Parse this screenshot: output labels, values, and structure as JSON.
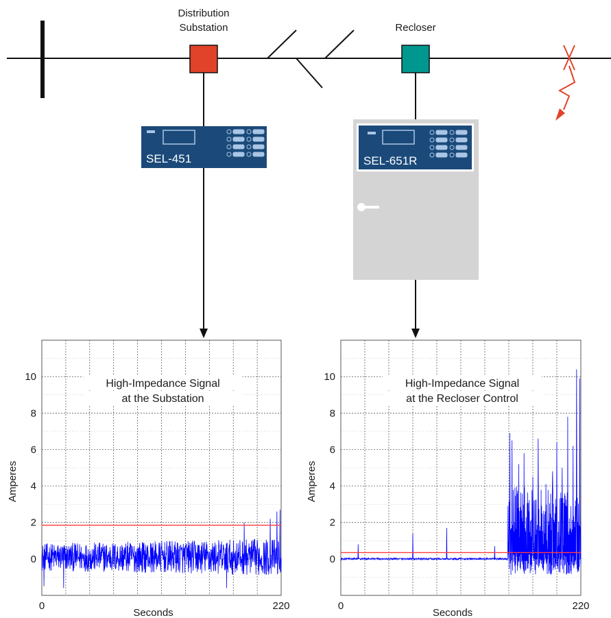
{
  "diagram": {
    "labels": {
      "substation_line1": "Distribution",
      "substation_line2": "Substation",
      "recloser": "Recloser"
    },
    "devices": {
      "relay_left": "SEL-451",
      "relay_right": "SEL-651R"
    },
    "colors": {
      "substation_box": "#e0432a",
      "recloser_box": "#00978f",
      "relay_panel": "#1b4a7a",
      "cabinet": "#d4d4d4",
      "fault": "#e0432a",
      "signal": "#0000ff",
      "threshold": "#ff3b3b"
    }
  },
  "chart_data": [
    {
      "type": "line",
      "title_lines": [
        "High-Impedance Signal",
        "at the Substation"
      ],
      "xlabel": "Seconds",
      "ylabel": "Amperes",
      "xlim": [
        0,
        220
      ],
      "ylim": [
        -2,
        12
      ],
      "x_ticks": [
        0,
        220
      ],
      "y_ticks": [
        0,
        2,
        4,
        6,
        8,
        10
      ],
      "grid": true,
      "threshold": 1.85,
      "series": [
        {
          "style": "noise",
          "baseline": 0.1,
          "amplitude": 0.75,
          "t_end": 220,
          "peaks": [
            {
              "t": 186,
              "value": 2.0
            },
            {
              "t": 210,
              "value": 2.2
            },
            {
              "t": 216,
              "value": 2.6
            },
            {
              "t": 219,
              "value": 2.7
            }
          ],
          "troughs": [
            {
              "t": 2,
              "value": -1.5
            },
            {
              "t": 20,
              "value": -1.6
            },
            {
              "t": 170,
              "value": -1.6
            }
          ]
        }
      ]
    },
    {
      "type": "line",
      "title_lines": [
        "High-Impedance Signal",
        "at the Recloser Control"
      ],
      "xlabel": "Seconds",
      "ylabel": "Amperes",
      "xlim": [
        0,
        220
      ],
      "ylim": [
        -2,
        12
      ],
      "x_ticks": [
        0,
        220
      ],
      "y_ticks": [
        0,
        2,
        4,
        6,
        8,
        10
      ],
      "grid": true,
      "threshold": 0.35,
      "series": [
        {
          "style": "quiet_then_burst",
          "baseline": 0.0,
          "quiet_amplitude": 0.05,
          "burst_start": 153,
          "t_end": 220,
          "quiet_spikes": [
            {
              "t": 16,
              "value": 0.8
            },
            {
              "t": 66,
              "value": 1.4
            },
            {
              "t": 97,
              "value": 1.7
            },
            {
              "t": 141,
              "value": 0.7
            }
          ],
          "burst_peaks": [
            {
              "t": 155,
              "value": 6.9
            },
            {
              "t": 157,
              "value": 6.5
            },
            {
              "t": 163,
              "value": 5.2
            },
            {
              "t": 168,
              "value": 5.8
            },
            {
              "t": 176,
              "value": 4.5
            },
            {
              "t": 181,
              "value": 6.6
            },
            {
              "t": 188,
              "value": 4.1
            },
            {
              "t": 194,
              "value": 4.8
            },
            {
              "t": 198,
              "value": 6.4
            },
            {
              "t": 203,
              "value": 5.0
            },
            {
              "t": 208,
              "value": 7.8
            },
            {
              "t": 213,
              "value": 6.2
            },
            {
              "t": 216,
              "value": 10.4
            },
            {
              "t": 219,
              "value": 9.9
            }
          ],
          "burst_low": -0.9
        }
      ]
    }
  ]
}
